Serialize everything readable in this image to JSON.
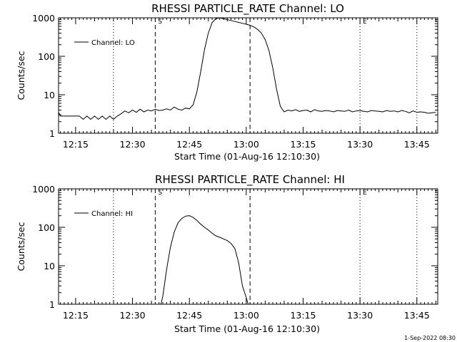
{
  "chart_data": [
    {
      "type": "line",
      "title": "RHESSI PARTICLE_RATE Channel: LO",
      "xlabel": "Start Time (01-Aug-16 12:10:30)",
      "ylabel": "Counts/sec",
      "yscale": "log",
      "ylim": [
        1,
        1000
      ],
      "xlim": [
        "12:10:30",
        "13:50:30"
      ],
      "x_ticks": [
        "12:15",
        "12:30",
        "12:45",
        "13:00",
        "13:15",
        "13:30",
        "13:45"
      ],
      "y_ticks": [
        "1",
        "10",
        "100",
        "1000"
      ],
      "legend": "top-left",
      "series": [
        {
          "name": "Channel: LO",
          "x": [
            "12:10:30",
            "12:11",
            "12:12",
            "12:13",
            "12:14",
            "12:15",
            "12:16",
            "12:17",
            "12:18",
            "12:19",
            "12:20",
            "12:21",
            "12:22",
            "12:23",
            "12:24",
            "12:25",
            "12:26",
            "12:27",
            "12:28",
            "12:29",
            "12:30",
            "12:31",
            "12:32",
            "12:33",
            "12:34",
            "12:35",
            "12:36",
            "12:37",
            "12:38",
            "12:39",
            "12:40",
            "12:41",
            "12:42",
            "12:43",
            "12:44",
            "12:45",
            "12:46",
            "12:47",
            "12:48",
            "12:49",
            "12:50",
            "12:51",
            "12:52",
            "12:53",
            "12:54",
            "12:55",
            "12:56",
            "12:57",
            "12:58",
            "12:59",
            "13:00",
            "13:01",
            "13:02",
            "13:03",
            "13:04",
            "13:05",
            "13:06",
            "13:07",
            "13:08",
            "13:09",
            "13:10",
            "13:11",
            "13:12",
            "13:13",
            "13:14",
            "13:15",
            "13:16",
            "13:17",
            "13:18",
            "13:19",
            "13:20",
            "13:21",
            "13:22",
            "13:23",
            "13:24",
            "13:25",
            "13:26",
            "13:27",
            "13:28",
            "13:29",
            "13:30",
            "13:31",
            "13:32",
            "13:33",
            "13:34",
            "13:35",
            "13:36",
            "13:37",
            "13:38",
            "13:39",
            "13:40",
            "13:41",
            "13:42",
            "13:43",
            "13:44",
            "13:45",
            "13:46",
            "13:47",
            "13:48",
            "13:49",
            "13:50"
          ],
          "values": [
            3.5,
            2.8,
            2.8,
            2.8,
            2.8,
            2.8,
            2.8,
            2.3,
            2.8,
            2.3,
            2.8,
            2.3,
            2.8,
            2.3,
            2.8,
            2.3,
            2.8,
            3.2,
            3.8,
            3.4,
            4.0,
            3.5,
            4.2,
            3.6,
            4.0,
            3.8,
            4.2,
            3.9,
            4.0,
            4.3,
            4.0,
            4.8,
            4.2,
            4.0,
            4.5,
            4.3,
            5.5,
            12,
            40,
            150,
            400,
            750,
            950,
            1000,
            950,
            900,
            850,
            800,
            760,
            720,
            680,
            640,
            580,
            500,
            400,
            270,
            140,
            50,
            14,
            5,
            3.6,
            4.0,
            3.8,
            4.1,
            3.7,
            3.9,
            4.0,
            3.6,
            4.1,
            3.8,
            3.7,
            3.9,
            3.8,
            3.6,
            3.9,
            3.8,
            3.7,
            4.0,
            3.6,
            3.8,
            3.9,
            3.7,
            3.6,
            3.9,
            3.8,
            3.7,
            3.6,
            3.9,
            3.7,
            3.8,
            3.6,
            3.9,
            3.7,
            3.4,
            3.8,
            3.5,
            3.6,
            3.5,
            3.3,
            3.4,
            3.5
          ]
        }
      ],
      "markers": [
        {
          "label": "S",
          "time": "12:36:00",
          "style": "dashed"
        },
        {
          "label": "",
          "time": "13:01:00",
          "style": "dashed"
        },
        {
          "label": "",
          "time": "12:25:00",
          "style": "dotted"
        },
        {
          "label": "E",
          "time": "13:30:00",
          "style": "dotted"
        },
        {
          "label": "",
          "time": "13:45:00",
          "style": "dotted"
        }
      ]
    },
    {
      "type": "line",
      "title": "RHESSI PARTICLE_RATE Channel: HI",
      "xlabel": "Start Time (01-Aug-16 12:10:30)",
      "ylabel": "Counts/sec",
      "yscale": "log",
      "ylim": [
        1,
        1000
      ],
      "xlim": [
        "12:10:30",
        "13:50:30"
      ],
      "x_ticks": [
        "12:15",
        "12:30",
        "12:45",
        "13:00",
        "13:15",
        "13:30",
        "13:45"
      ],
      "y_ticks": [
        "1",
        "10",
        "100",
        "1000"
      ],
      "legend": "top-left",
      "series": [
        {
          "name": "Channel: HI",
          "x": [
            "12:37:30",
            "12:38",
            "12:39",
            "12:40",
            "12:41",
            "12:42",
            "12:43",
            "12:44",
            "12:45",
            "12:46",
            "12:47",
            "12:48",
            "12:49",
            "12:50",
            "12:51",
            "12:52",
            "12:53",
            "12:54",
            "12:55",
            "12:56",
            "12:57",
            "12:58",
            "12:59",
            "13:00",
            "13:00:30"
          ],
          "values": [
            1.0,
            1.6,
            8,
            30,
            75,
            130,
            170,
            195,
            200,
            180,
            150,
            120,
            100,
            85,
            70,
            60,
            55,
            50,
            45,
            38,
            28,
            12,
            3,
            1.5,
            1.0
          ]
        }
      ],
      "markers": [
        {
          "label": "S",
          "time": "12:36:00",
          "style": "dashed"
        },
        {
          "label": "",
          "time": "13:01:00",
          "style": "dashed"
        },
        {
          "label": "",
          "time": "12:25:00",
          "style": "dotted"
        },
        {
          "label": "E",
          "time": "13:30:00",
          "style": "dotted"
        },
        {
          "label": "",
          "time": "13:45:00",
          "style": "dotted"
        }
      ]
    }
  ],
  "footer": {
    "timestamp": "1-Sep-2022 08:30"
  }
}
